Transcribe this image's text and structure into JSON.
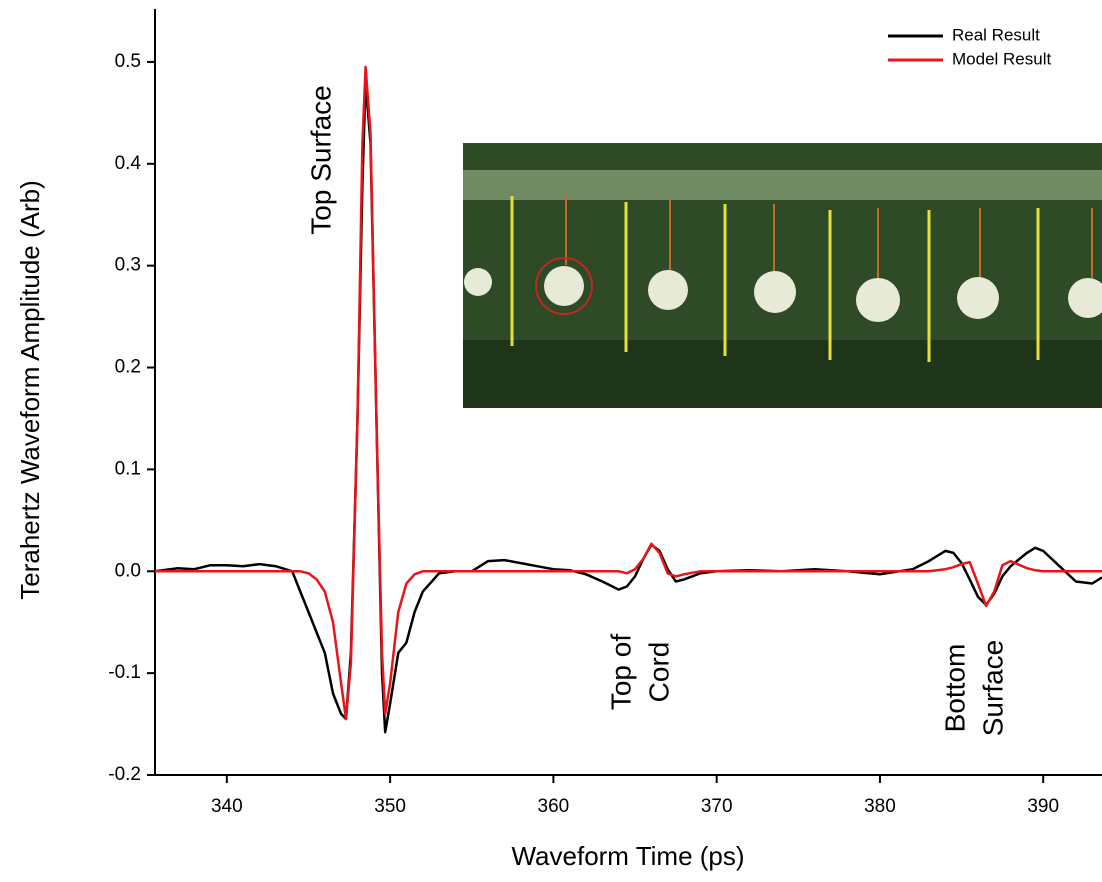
{
  "chart_data": {
    "type": "line",
    "xlabel": "Waveform Time (ps)",
    "ylabel": "Terahertz Waveform Amplitude (Arb)",
    "x": [
      335.6,
      337,
      338,
      339,
      340,
      341,
      342,
      343,
      344,
      344.5,
      345,
      345.5,
      346,
      346.5,
      347,
      347.3,
      347.6,
      348,
      348.3,
      348.5,
      348.8,
      349.2,
      349.5,
      349.7,
      350,
      350.5,
      351,
      351.5,
      352,
      353,
      354,
      355,
      356,
      357,
      358,
      359,
      360,
      361,
      362,
      363,
      364,
      364.5,
      365,
      365.5,
      366,
      366.5,
      367,
      367.5,
      368,
      369,
      370,
      372,
      374,
      376,
      378,
      380,
      382,
      383,
      384,
      384.5,
      385,
      385.5,
      386,
      386.5,
      387,
      387.5,
      388,
      389,
      389.5,
      390,
      391,
      392,
      393,
      393.6
    ],
    "series": [
      {
        "name": "Real Result",
        "color": "#000000",
        "values": [
          0,
          0.003,
          0.002,
          0.006,
          0.006,
          0.005,
          0.007,
          0.005,
          0,
          -0.02,
          -0.04,
          -0.06,
          -0.08,
          -0.12,
          -0.14,
          -0.145,
          -0.08,
          0.15,
          0.38,
          0.48,
          0.42,
          0.12,
          -0.1,
          -0.158,
          -0.13,
          -0.08,
          -0.07,
          -0.04,
          -0.02,
          -0.002,
          0,
          0,
          0.01,
          0.011,
          0.008,
          0.005,
          0.002,
          0.001,
          -0.003,
          -0.01,
          -0.018,
          -0.015,
          -0.005,
          0.012,
          0.026,
          0.02,
          0.002,
          -0.01,
          -0.008,
          -0.002,
          0,
          0.001,
          0,
          0.002,
          0,
          -0.003,
          0.002,
          0.01,
          0.02,
          0.018,
          0.008,
          -0.008,
          -0.025,
          -0.033,
          -0.022,
          -0.005,
          0.005,
          0.018,
          0.023,
          0.02,
          0.005,
          -0.01,
          -0.012,
          -0.006
        ]
      },
      {
        "name": "Model Result",
        "color": "#e8141b",
        "values": [
          0,
          0,
          0,
          0,
          0,
          0,
          0,
          0,
          0,
          0,
          -0.002,
          -0.008,
          -0.02,
          -0.05,
          -0.11,
          -0.145,
          -0.09,
          0.15,
          0.42,
          0.495,
          0.43,
          0.12,
          -0.08,
          -0.14,
          -0.11,
          -0.04,
          -0.012,
          -0.003,
          0,
          0,
          0,
          0,
          0,
          0,
          0,
          0,
          0,
          0,
          0,
          0,
          0,
          -0.002,
          0.002,
          0.012,
          0.027,
          0.018,
          -0.002,
          -0.005,
          -0.003,
          0,
          0,
          0,
          0,
          0,
          0,
          0,
          0,
          0,
          0.002,
          0.004,
          0.007,
          0.009,
          -0.012,
          -0.034,
          -0.02,
          0.006,
          0.01,
          0.003,
          0.001,
          0,
          0,
          0,
          0,
          0
        ]
      }
    ],
    "xlim": [
      335.6,
      393.6
    ],
    "ylim": [
      -0.2,
      0.55
    ],
    "xticks": [
      340,
      350,
      360,
      370,
      380,
      390
    ],
    "yticks": [
      -0.2,
      -0.1,
      {
        "value": 0,
        "label": "0.0"
      },
      0.1,
      0.2,
      0.3,
      0.4,
      0.5
    ],
    "legend": "top-right",
    "annotations": [
      {
        "lines": [
          "Top Surface"
        ]
      },
      {
        "lines": [
          "Top of",
          "Cord"
        ]
      },
      {
        "lines": [
          "Bottom",
          "Surface"
        ]
      }
    ]
  }
}
